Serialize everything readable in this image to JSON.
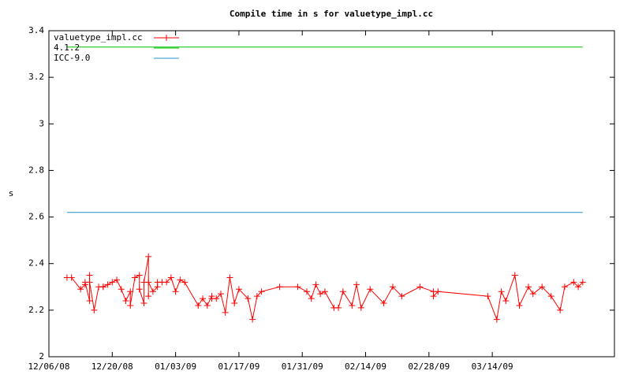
{
  "chart_data": {
    "type": "line",
    "title": "Compile time in s for valuetype_impl.cc",
    "ylabel": "s",
    "xlim": [
      "2008-12-06",
      "2009-04-10"
    ],
    "xticks": [
      {
        "value": "2008-12-06",
        "label": "12/06/08"
      },
      {
        "value": "2008-12-20",
        "label": "12/20/08"
      },
      {
        "value": "2009-01-03",
        "label": "01/03/09"
      },
      {
        "value": "2009-01-17",
        "label": "01/17/09"
      },
      {
        "value": "2009-01-31",
        "label": "01/31/09"
      },
      {
        "value": "2009-02-14",
        "label": "02/14/09"
      },
      {
        "value": "2009-02-28",
        "label": "02/28/09"
      },
      {
        "value": "2009-03-14",
        "label": "03/14/09"
      }
    ],
    "ylim": [
      2,
      3.4
    ],
    "yticks": [
      2,
      2.2,
      2.4,
      2.6,
      2.8,
      3,
      3.2,
      3.4
    ],
    "legend": "top-left",
    "series": [
      {
        "name": "valuetype_impl.cc",
        "color": "#ff0000",
        "marker": "+",
        "x": [
          "2008-12-10",
          "2008-12-11",
          "2008-12-13",
          "2008-12-14",
          "2008-12-14",
          "2008-12-15",
          "2008-12-15",
          "2008-12-15",
          "2008-12-16",
          "2008-12-17",
          "2008-12-18",
          "2008-12-18",
          "2008-12-19",
          "2008-12-20",
          "2008-12-21",
          "2008-12-22",
          "2008-12-23",
          "2008-12-24",
          "2008-12-24",
          "2008-12-25",
          "2008-12-26",
          "2008-12-26",
          "2008-12-27",
          "2008-12-27",
          "2008-12-28",
          "2008-12-28",
          "2008-12-28",
          "2008-12-29",
          "2008-12-30",
          "2008-12-30",
          "2008-12-31",
          "2009-01-01",
          "2009-01-02",
          "2009-01-03",
          "2009-01-04",
          "2009-01-05",
          "2009-01-08",
          "2009-01-09",
          "2009-01-10",
          "2009-01-11",
          "2009-01-11",
          "2009-01-12",
          "2009-01-13",
          "2009-01-14",
          "2009-01-15",
          "2009-01-16",
          "2009-01-17",
          "2009-01-19",
          "2009-01-20",
          "2009-01-21",
          "2009-01-22",
          "2009-01-26",
          "2009-01-30",
          "2009-02-01",
          "2009-02-02",
          "2009-02-03",
          "2009-02-04",
          "2009-02-05",
          "2009-02-07",
          "2009-02-08",
          "2009-02-09",
          "2009-02-11",
          "2009-02-12",
          "2009-02-13",
          "2009-02-15",
          "2009-02-18",
          "2009-02-20",
          "2009-02-22",
          "2009-02-26",
          "2009-03-01",
          "2009-03-01",
          "2009-03-02",
          "2009-03-13",
          "2009-03-15",
          "2009-03-16",
          "2009-03-17",
          "2009-03-19",
          "2009-03-20",
          "2009-03-22",
          "2009-03-23",
          "2009-03-25",
          "2009-03-27",
          "2009-03-29",
          "2009-03-30",
          "2009-04-01",
          "2009-04-02",
          "2009-04-03"
        ],
        "values": [
          2.34,
          2.34,
          2.29,
          2.31,
          2.32,
          2.24,
          2.35,
          2.32,
          2.2,
          2.3,
          2.3,
          2.3,
          2.31,
          2.32,
          2.33,
          2.29,
          2.24,
          2.28,
          2.22,
          2.34,
          2.35,
          2.29,
          2.23,
          2.32,
          2.43,
          2.26,
          2.32,
          2.28,
          2.3,
          2.32,
          2.32,
          2.32,
          2.34,
          2.28,
          2.33,
          2.32,
          2.22,
          2.25,
          2.22,
          2.26,
          2.25,
          2.25,
          2.27,
          2.19,
          2.34,
          2.23,
          2.29,
          2.25,
          2.16,
          2.26,
          2.28,
          2.3,
          2.3,
          2.28,
          2.25,
          2.31,
          2.27,
          2.28,
          2.21,
          2.21,
          2.28,
          2.22,
          2.31,
          2.21,
          2.29,
          2.23,
          2.3,
          2.26,
          2.3,
          2.28,
          2.26,
          2.28,
          2.26,
          2.16,
          2.28,
          2.24,
          2.35,
          2.22,
          2.3,
          2.27,
          2.3,
          2.26,
          2.2,
          2.3,
          2.32,
          2.3,
          2.32
        ]
      },
      {
        "name": "4.1.2",
        "color": "#00c000",
        "x": [
          "2008-12-10",
          "2009-04-03"
        ],
        "values": [
          3.33,
          3.33
        ]
      },
      {
        "name": "ICC-9.0",
        "color": "#2090d0",
        "x": [
          "2008-12-10",
          "2009-04-03"
        ],
        "values": [
          2.62,
          2.62
        ]
      }
    ]
  }
}
